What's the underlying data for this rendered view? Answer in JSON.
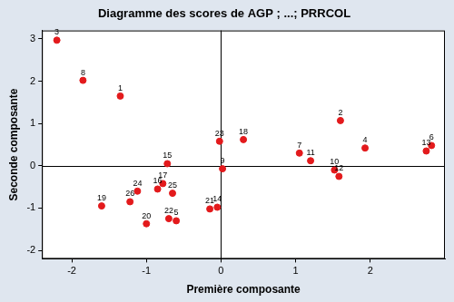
{
  "chart_data": {
    "type": "scatter",
    "title": "Diagramme des scores de AGP ; ...; PRRCOL",
    "x_label": "Première composante",
    "y_label": "Seconde composante",
    "x": [
      -1.35,
      1.6,
      -2.2,
      1.93,
      -0.6,
      2.82,
      1.05,
      -1.85,
      0.02,
      1.52,
      1.2,
      1.58,
      2.75,
      -0.05,
      -0.72,
      -0.85,
      -0.78,
      0.3,
      -1.6,
      -1.0,
      -0.15,
      -0.7,
      -0.02,
      -1.12,
      -0.65,
      -1.22
    ],
    "values": [
      1.65,
      1.07,
      2.97,
      0.42,
      -1.3,
      0.48,
      0.3,
      2.02,
      -0.07,
      -0.1,
      0.12,
      -0.25,
      0.35,
      -0.98,
      0.05,
      -0.55,
      -0.42,
      0.62,
      -0.95,
      -1.37,
      -1.02,
      -1.25,
      0.58,
      -0.6,
      -0.65,
      -0.85
    ],
    "point_labels": [
      "1",
      "2",
      "3",
      "4",
      "5",
      "6",
      "7",
      "8",
      "9",
      "10",
      "11",
      "12",
      "13",
      "14",
      "15",
      "16",
      "17",
      "18",
      "19",
      "20",
      "21",
      "22",
      "23",
      "24",
      "25",
      "26"
    ],
    "color": "#e31a1c",
    "marker": "circle",
    "xlim": [
      -2.4,
      3.0
    ],
    "xticks": [
      -2,
      -1,
      0,
      1,
      2
    ],
    "ylim": [
      -2.2,
      3.2
    ],
    "yticks": [
      -2,
      -1,
      0,
      1,
      2,
      3
    ],
    "reference_lines": {
      "x": 0,
      "y": 0
    },
    "grid": false
  }
}
